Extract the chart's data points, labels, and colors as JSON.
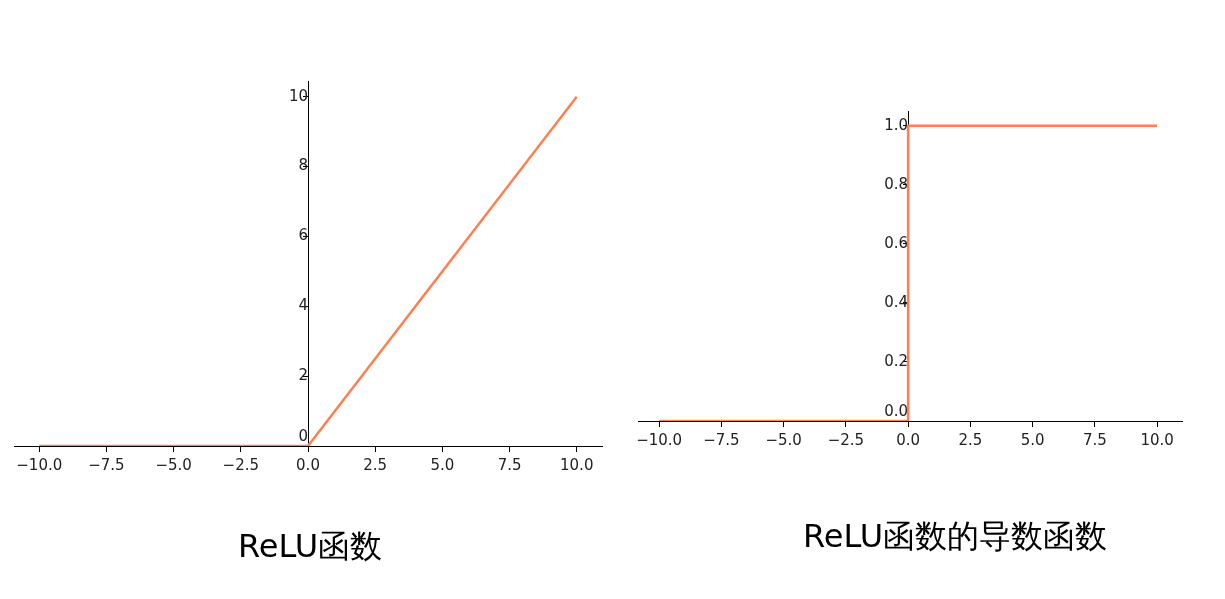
{
  "chart_data": [
    {
      "type": "line",
      "title": "ReLU函数",
      "x": [
        -10,
        0,
        10
      ],
      "series": [
        {
          "color": "#ff7f50",
          "values": [
            0,
            0,
            10
          ]
        }
      ],
      "xlim": [
        -10.94,
        10.94
      ],
      "ylim": [
        0,
        10.45
      ],
      "xticks": [
        {
          "value": -10,
          "label": "−10.0"
        },
        {
          "value": -7.5,
          "label": "−7.5"
        },
        {
          "value": -5,
          "label": "−5.0"
        },
        {
          "value": -2.5,
          "label": "−2.5"
        },
        {
          "value": 0,
          "label": "0.0"
        },
        {
          "value": 2.5,
          "label": "2.5"
        },
        {
          "value": 5,
          "label": "5.0"
        },
        {
          "value": 7.5,
          "label": "7.5"
        },
        {
          "value": 10,
          "label": "10.0"
        }
      ],
      "yticks": [
        0,
        2,
        4,
        6,
        8,
        10
      ]
    },
    {
      "type": "line",
      "title": "ReLU函数的导数函数",
      "x": [
        -10,
        0,
        0,
        10
      ],
      "series": [
        {
          "color": "#ff7f50",
          "values": [
            0,
            0,
            1,
            1
          ]
        }
      ],
      "xlim": [
        -10.82,
        11
      ],
      "ylim": [
        0,
        1.05
      ],
      "xticks": [
        {
          "value": -10,
          "label": "−10.0"
        },
        {
          "value": -7.5,
          "label": "−7.5"
        },
        {
          "value": -5,
          "label": "−5.0"
        },
        {
          "value": -2.5,
          "label": "−2.5"
        },
        {
          "value": 0,
          "label": "0.0"
        },
        {
          "value": 2.5,
          "label": "2.5"
        },
        {
          "value": 5,
          "label": "5.0"
        },
        {
          "value": 7.5,
          "label": "7.5"
        },
        {
          "value": 10,
          "label": "10.0"
        }
      ],
      "yticks": [
        {
          "value": 0,
          "label": "0.0"
        },
        0.2,
        0.4,
        0.6,
        {
          "value": 0.8,
          "label": "0.8"
        },
        {
          "value": 1,
          "label": "1.0"
        }
      ]
    }
  ]
}
